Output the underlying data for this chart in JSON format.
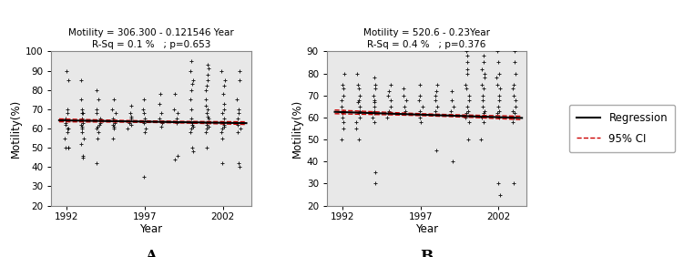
{
  "panel_A": {
    "title_line1": "Motility = 306.300 - 0.121546 Year",
    "title_line2": "R-Sq = 0.1 %   ; p=0.653",
    "xlabel": "Year",
    "ylabel": "Motility(%)",
    "label": "A",
    "xlim": [
      1991.0,
      2003.8
    ],
    "ylim": [
      20,
      100
    ],
    "yticks": [
      20,
      30,
      40,
      50,
      60,
      70,
      80,
      90,
      100
    ],
    "xticks": [
      1992,
      1997,
      2002
    ],
    "reg_intercept": 306.3,
    "reg_slope": -0.121546,
    "ci_se": 2.3,
    "scatter_x": [
      1992,
      1992,
      1992,
      1992,
      1992,
      1992,
      1992,
      1992,
      1992,
      1992,
      1992,
      1992,
      1992,
      1992,
      1993,
      1993,
      1993,
      1993,
      1993,
      1993,
      1993,
      1993,
      1993,
      1993,
      1993,
      1993,
      1993,
      1993,
      1993,
      1994,
      1994,
      1994,
      1994,
      1994,
      1994,
      1994,
      1994,
      1994,
      1994,
      1994,
      1994,
      1995,
      1995,
      1995,
      1995,
      1995,
      1995,
      1995,
      1995,
      1995,
      1996,
      1996,
      1996,
      1996,
      1996,
      1996,
      1996,
      1997,
      1997,
      1997,
      1997,
      1997,
      1997,
      1997,
      1997,
      1998,
      1998,
      1998,
      1998,
      1998,
      1998,
      1999,
      1999,
      1999,
      1999,
      1999,
      1999,
      1999,
      2000,
      2000,
      2000,
      2000,
      2000,
      2000,
      2000,
      2000,
      2000,
      2000,
      2000,
      2000,
      2000,
      2000,
      2000,
      2001,
      2001,
      2001,
      2001,
      2001,
      2001,
      2001,
      2001,
      2001,
      2001,
      2001,
      2001,
      2001,
      2001,
      2001,
      2001,
      2001,
      2001,
      2002,
      2002,
      2002,
      2002,
      2002,
      2002,
      2002,
      2002,
      2002,
      2002,
      2002,
      2002,
      2002,
      2002,
      2002,
      2003,
      2003,
      2003,
      2003,
      2003,
      2003,
      2003,
      2003,
      2003,
      2003,
      2003,
      2003
    ],
    "scatter_y": [
      90,
      85,
      70,
      68,
      65,
      63,
      62,
      60,
      60,
      58,
      55,
      50,
      50,
      50,
      85,
      75,
      70,
      68,
      68,
      65,
      63,
      62,
      61,
      60,
      58,
      55,
      52,
      46,
      45,
      80,
      75,
      70,
      68,
      65,
      63,
      62,
      61,
      60,
      58,
      55,
      42,
      75,
      70,
      68,
      65,
      63,
      62,
      61,
      60,
      55,
      72,
      68,
      66,
      65,
      63,
      62,
      60,
      75,
      70,
      68,
      65,
      63,
      60,
      58,
      35,
      78,
      73,
      68,
      65,
      63,
      61,
      78,
      70,
      68,
      65,
      63,
      46,
      44,
      95,
      90,
      85,
      83,
      80,
      75,
      70,
      65,
      63,
      62,
      61,
      60,
      58,
      50,
      48,
      93,
      91,
      88,
      85,
      82,
      80,
      75,
      72,
      70,
      68,
      66,
      65,
      63,
      62,
      61,
      60,
      58,
      50,
      90,
      85,
      82,
      78,
      73,
      70,
      68,
      65,
      63,
      62,
      61,
      60,
      58,
      55,
      42,
      90,
      85,
      75,
      70,
      68,
      65,
      63,
      62,
      60,
      58,
      42,
      40
    ]
  },
  "panel_B": {
    "title_line1": "Motility = 520.6 - 0.23Year",
    "title_line2": "R-Sq = 0.4 %   ; p=0.376",
    "xlabel": "Year",
    "ylabel": "Motility(%)",
    "label": "B",
    "xlim": [
      1991.0,
      2003.8
    ],
    "ylim": [
      20,
      90
    ],
    "yticks": [
      20,
      30,
      40,
      50,
      60,
      70,
      80,
      90
    ],
    "xticks": [
      1992,
      1997,
      2002
    ],
    "reg_intercept": 520.6,
    "reg_slope": -0.23,
    "ci_se": 2.5,
    "scatter_x": [
      1992,
      1992,
      1992,
      1992,
      1992,
      1992,
      1992,
      1992,
      1992,
      1992,
      1992,
      1992,
      1993,
      1993,
      1993,
      1993,
      1993,
      1993,
      1993,
      1993,
      1993,
      1993,
      1993,
      1993,
      1993,
      1994,
      1994,
      1994,
      1994,
      1994,
      1994,
      1994,
      1994,
      1994,
      1994,
      1994,
      1994,
      1994,
      1995,
      1995,
      1995,
      1995,
      1995,
      1995,
      1995,
      1995,
      1996,
      1996,
      1996,
      1996,
      1996,
      1996,
      1997,
      1997,
      1997,
      1997,
      1997,
      1997,
      1997,
      1998,
      1998,
      1998,
      1998,
      1998,
      1998,
      1998,
      1999,
      1999,
      1999,
      1999,
      1999,
      2000,
      2000,
      2000,
      2000,
      2000,
      2000,
      2000,
      2000,
      2000,
      2000,
      2000,
      2000,
      2000,
      2000,
      2000,
      2000,
      2001,
      2001,
      2001,
      2001,
      2001,
      2001,
      2001,
      2001,
      2001,
      2001,
      2001,
      2001,
      2001,
      2001,
      2001,
      2001,
      2002,
      2002,
      2002,
      2002,
      2002,
      2002,
      2002,
      2002,
      2002,
      2002,
      2002,
      2002,
      2002,
      2002,
      2003,
      2003,
      2003,
      2003,
      2003,
      2003,
      2003,
      2003,
      2003,
      2003,
      2003,
      2003,
      2003
    ],
    "scatter_y": [
      80,
      75,
      73,
      70,
      68,
      65,
      63,
      62,
      60,
      58,
      55,
      50,
      80,
      75,
      73,
      70,
      68,
      67,
      65,
      63,
      62,
      60,
      58,
      55,
      50,
      78,
      75,
      73,
      70,
      68,
      67,
      65,
      63,
      62,
      60,
      58,
      35,
      30,
      75,
      72,
      70,
      68,
      65,
      63,
      62,
      60,
      73,
      70,
      68,
      65,
      63,
      62,
      75,
      70,
      68,
      65,
      63,
      60,
      58,
      75,
      72,
      70,
      68,
      65,
      63,
      45,
      72,
      68,
      65,
      63,
      40,
      95,
      90,
      88,
      85,
      82,
      80,
      75,
      73,
      70,
      68,
      65,
      63,
      62,
      60,
      58,
      50,
      92,
      88,
      85,
      82,
      80,
      78,
      75,
      73,
      70,
      68,
      65,
      63,
      62,
      60,
      58,
      50,
      90,
      85,
      80,
      78,
      75,
      73,
      70,
      68,
      65,
      63,
      62,
      60,
      30,
      25,
      90,
      85,
      80,
      75,
      73,
      70,
      68,
      65,
      63,
      62,
      60,
      58,
      30
    ]
  },
  "regression_color": "#000000",
  "ci_color": "#cc0000",
  "scatter_color": "#000000",
  "scatter_marker": "+",
  "scatter_size": 10,
  "bg_color": "#e8e8e8",
  "title_fontsize": 7.5,
  "axis_label_fontsize": 8.5,
  "tick_fontsize": 7.5,
  "legend_fontsize": 8.5
}
